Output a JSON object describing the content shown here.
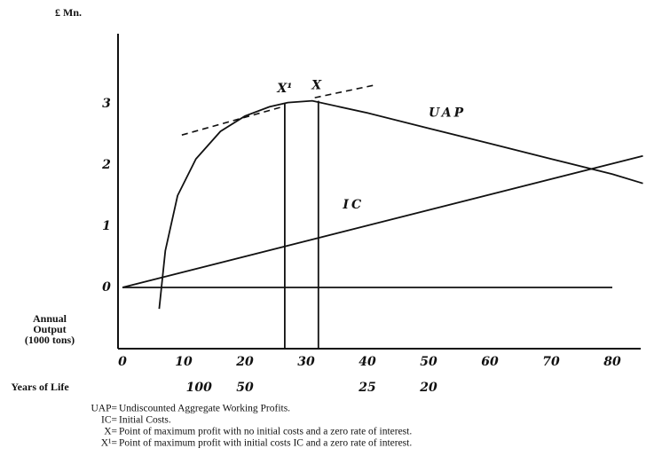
{
  "chart_data": {
    "type": "line",
    "y_label": "£ Mn.",
    "x_label": [
      "Annual",
      "Output",
      "(1000 tons)"
    ],
    "x2_label": "Years of Life",
    "xlim": [
      0,
      85
    ],
    "ylim": [
      -1,
      4
    ],
    "xticks": [
      0,
      10,
      20,
      30,
      40,
      50,
      60,
      70,
      80
    ],
    "x2ticks": [
      {
        "value": 12.5,
        "label": "100"
      },
      {
        "value": 20,
        "label": "50"
      },
      {
        "value": 40,
        "label": "25"
      },
      {
        "value": 50,
        "label": "20"
      }
    ],
    "yticks": [
      0,
      1,
      2,
      3
    ],
    "series": [
      {
        "name": "UAP",
        "color": "#111",
        "x": [
          6,
          7,
          9,
          12,
          16,
          20,
          24,
          27,
          31,
          40,
          50,
          60,
          70,
          80,
          85
        ],
        "values": [
          -0.35,
          0.6,
          1.5,
          2.1,
          2.55,
          2.8,
          2.95,
          3.02,
          3.05,
          2.85,
          2.6,
          2.35,
          2.1,
          1.85,
          1.7
        ]
      },
      {
        "name": "IC",
        "color": "#111",
        "x": [
          0,
          85
        ],
        "values": [
          0,
          2.15
        ]
      }
    ],
    "guides": [
      {
        "x": [
          0,
          80
        ],
        "values": [
          0,
          0
        ],
        "dash": false
      },
      {
        "x": [
          9.7,
          26.4
        ],
        "values": [
          2.49,
          2.96
        ],
        "dash": true
      },
      {
        "x": [
          31.4,
          40.9
        ],
        "values": [
          3.1,
          3.3
        ],
        "dash": true
      },
      {
        "x": [
          26.5,
          26.5
        ],
        "values": [
          3.0,
          -1
        ],
        "dash": false
      },
      {
        "x": [
          32,
          32
        ],
        "values": [
          3.05,
          -1
        ],
        "dash": false
      }
    ],
    "annotations": [
      {
        "text": "X¹",
        "x": 26.5,
        "y": 3.25
      },
      {
        "text": "X",
        "x": 31.7,
        "y": 3.3
      }
    ],
    "notes": [
      {
        "term": "UAP=",
        "text": "Undiscounted Aggregate Working Profits."
      },
      {
        "term": "IC=",
        "text": "Initial Costs."
      },
      {
        "term": "X=",
        "text": "Point of maximum profit with no initial costs and a zero rate of interest."
      },
      {
        "term": "X¹=",
        "text": "Point of maximum profit with initial costs IC and a zero rate of interest."
      }
    ]
  }
}
